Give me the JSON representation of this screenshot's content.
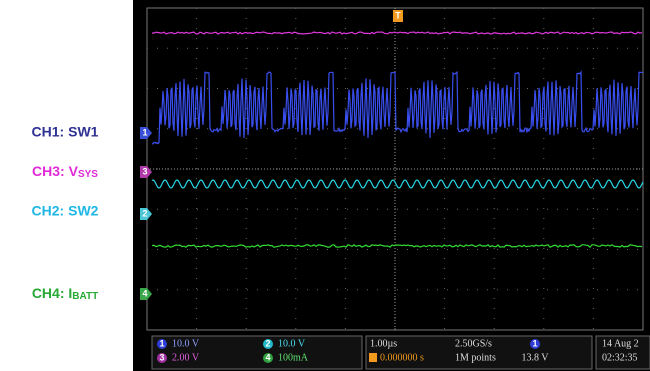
{
  "labels": {
    "ch1": "CH1: SW1",
    "ch3": {
      "prefix": "CH3: V",
      "subscript": "SYS"
    },
    "ch2": "CH2: SW2",
    "ch4": {
      "prefix": "CH4: I",
      "subscript": "BATT"
    }
  },
  "markers": {
    "ch1": "1",
    "ch2": "2",
    "ch3": "3",
    "ch4": "4",
    "trigger": "T"
  },
  "status": {
    "ch1_scale": "10.0 V",
    "ch2_scale": "10.0 V",
    "ch3_scale": "2.00 V",
    "ch4_scale": "100mA",
    "timebase": "1.00µs",
    "trigger_pos": "0.000000 s",
    "sample_rate": "2.50GS/s",
    "record": "1M points",
    "trigger_level": "13.8 V",
    "date": "14 Aug 2",
    "time": "02:32:35"
  }
}
